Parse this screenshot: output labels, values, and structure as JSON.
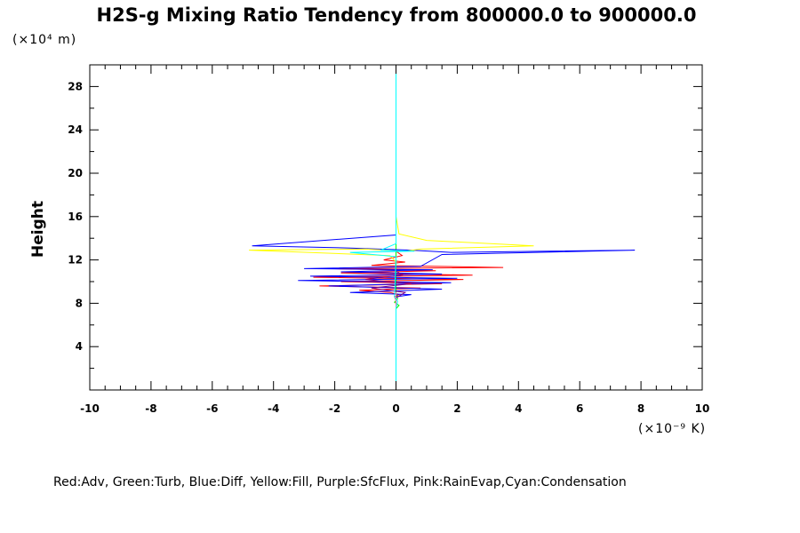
{
  "chart_data": {
    "type": "line",
    "title": "H2S-g Mixing Ratio Tendency from 800000.0 to 900000.0",
    "ylabel": "Height",
    "y_scale_note": "(×10⁴ m)",
    "x_scale_note": "(×10⁻⁹ K)",
    "legend_text": "Red:Adv, Green:Turb, Blue:Diff, Yellow:Fill, Purple:SfcFlux, Pink:RainEvap,Cyan:Condensation",
    "xlim": [
      -10,
      10
    ],
    "ylim": [
      0,
      30
    ],
    "x_ticks": [
      -10,
      -8,
      -6,
      -4,
      -2,
      0,
      2,
      4,
      6,
      8,
      10
    ],
    "x_tick_labels": [
      "-10",
      "-8",
      "-6",
      "-4",
      "-2",
      "0",
      "2",
      "4",
      "6",
      "8",
      "10"
    ],
    "y_ticks": [
      4,
      8,
      12,
      16,
      20,
      24,
      28
    ],
    "y_tick_labels": [
      "4",
      "8",
      "12",
      "16",
      "20",
      "24",
      "28"
    ],
    "series": [
      {
        "name": "Adv",
        "color": "#ff0000",
        "x": [
          0,
          0,
          0,
          0,
          -0.05,
          0.1,
          -0.2,
          -1.2,
          0.8,
          -2.5,
          1.5,
          -1.8,
          2.2,
          -2.7,
          2.5,
          -1.8,
          1.3,
          -2.2,
          3.5,
          -0.8,
          0.3,
          -0.4,
          0.2,
          0,
          0,
          0
        ],
        "y": [
          0.2,
          4,
          7.5,
          8.3,
          8.6,
          8.8,
          9.0,
          9.2,
          9.4,
          9.6,
          9.8,
          10.0,
          10.2,
          10.4,
          10.6,
          10.8,
          11.0,
          11.2,
          11.3,
          11.5,
          11.8,
          12.0,
          12.4,
          12.8,
          13.2,
          14
        ]
      },
      {
        "name": "Turb",
        "color": "#00ff00",
        "x": [
          0,
          0,
          0,
          0.1,
          -0.05,
          0.05,
          0,
          0
        ],
        "y": [
          0.2,
          4,
          7.5,
          7.8,
          8.1,
          8.4,
          9,
          30
        ]
      },
      {
        "name": "Diff",
        "color": "#0000ff",
        "x": [
          0,
          0,
          0.5,
          -1.5,
          1.5,
          -2.2,
          1.8,
          -3.2,
          2,
          -2.8,
          1.5,
          -1.8,
          1.2,
          -3,
          0.8,
          1.5,
          7.8,
          1.8,
          0.5,
          -1.5,
          -4.7,
          0,
          0,
          0
        ],
        "y": [
          8.5,
          8.6,
          8.8,
          9.0,
          9.3,
          9.6,
          9.9,
          10.1,
          10.3,
          10.5,
          10.7,
          10.9,
          11.1,
          11.2,
          11.4,
          12.5,
          12.9,
          12.7,
          12.9,
          13.1,
          13.3,
          14.3,
          14.6,
          30
        ]
      },
      {
        "name": "Fill",
        "color": "#ffff00",
        "x": [
          0,
          -0.2,
          -4.8,
          -1,
          0.3,
          0.8,
          4.5,
          1,
          0.1,
          0
        ],
        "y": [
          11.8,
          12.4,
          12.9,
          13.0,
          12.8,
          13.0,
          13.3,
          13.8,
          14.4,
          16
        ]
      },
      {
        "name": "SfcFlux",
        "color": "#800080",
        "x": [
          0,
          0,
          0.3,
          -0.8,
          0.5,
          -1,
          0.2,
          0
        ],
        "y": [
          0.2,
          8.5,
          9.0,
          9.4,
          9.8,
          10.2,
          10.6,
          11
        ]
      },
      {
        "name": "RainEvap",
        "color": "#ff69b4",
        "x": [
          0,
          0,
          0,
          0
        ],
        "y": [
          0.2,
          4,
          8,
          9
        ]
      },
      {
        "name": "Condensation",
        "color": "#00ffff",
        "x": [
          0,
          0,
          0.05,
          -0.05,
          0,
          -1.5,
          0.6,
          -0.5,
          0,
          0
        ],
        "y": [
          0.2,
          7.5,
          8.2,
          8.6,
          12.3,
          12.7,
          12.8,
          12.9,
          13.5,
          30
        ]
      }
    ]
  }
}
